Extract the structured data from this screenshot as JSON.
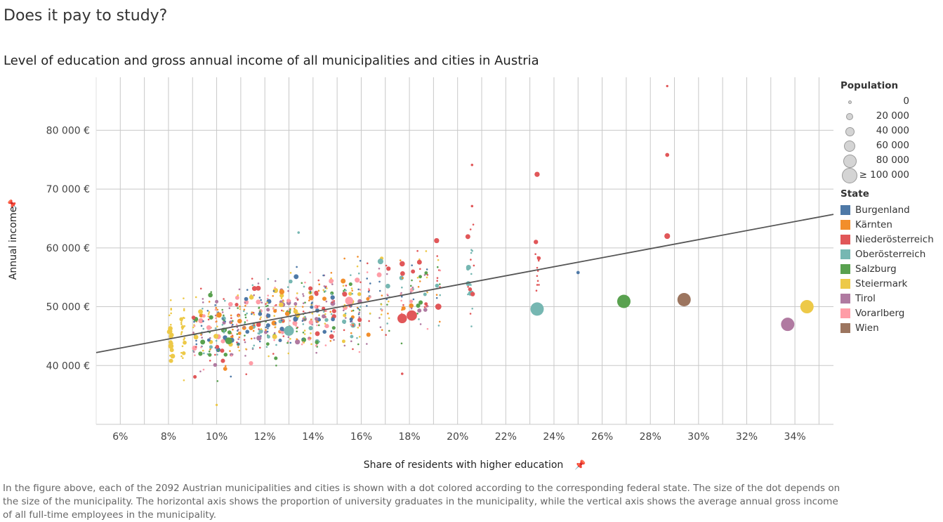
{
  "title": "Does it pay to study?",
  "subtitle": "Level of education and gross annual income of all municipalities and cities in Austria",
  "caption": "In the figure above, each of the 2092 Austrian municipalities and cities is shown with a dot colored according to the corresponding federal state. The size of the dot depends on the size of the municipality. The horizontal axis shows the proportion of university graduates in the municipality, while the vertical axis shows the average annual gross income of all full-time employees in the municipality.",
  "legend": {
    "population_title": "Population",
    "population_sizes": [
      "0",
      "20 000",
      "40 000",
      "60 000",
      "80 000",
      "≥ 100 000"
    ],
    "state_title": "State",
    "states": [
      {
        "name": "Burgenland",
        "color": "#4e79a7"
      },
      {
        "name": "Kärnten",
        "color": "#f28e2b"
      },
      {
        "name": "Niederösterreich",
        "color": "#e15759"
      },
      {
        "name": "Oberösterreich",
        "color": "#76b7b2"
      },
      {
        "name": "Salzburg",
        "color": "#59a14f"
      },
      {
        "name": "Steiermark",
        "color": "#edc948"
      },
      {
        "name": "Tirol",
        "color": "#b07aa1"
      },
      {
        "name": "Vorarlberg",
        "color": "#ff9da7"
      },
      {
        "name": "Wien",
        "color": "#9c755f"
      }
    ]
  },
  "chart_data": {
    "type": "scatter",
    "xlabel": "Share of residents with higher education",
    "ylabel": "Annual income",
    "x_ticks": [
      "6%",
      "8%",
      "10%",
      "12%",
      "14%",
      "16%",
      "18%",
      "20%",
      "22%",
      "24%",
      "26%",
      "28%",
      "30%",
      "32%",
      "34%"
    ],
    "y_ticks": [
      "40 000 €",
      "50 000 €",
      "60 000 €",
      "70 000 €",
      "80 000 €"
    ],
    "xlim": [
      5.0,
      35.6
    ],
    "ylim": [
      30000,
      89000
    ],
    "grid": true,
    "trendline": {
      "x": [
        5.0,
        35.6
      ],
      "y": [
        42200,
        65700
      ]
    },
    "points": [
      {
        "state": "Burgenland",
        "x": 25.0,
        "y": 55800,
        "population": 2000
      },
      {
        "state": "Salzburg",
        "x": 26.9,
        "y": 50900,
        "population": 150000
      },
      {
        "state": "Wien",
        "x": 29.4,
        "y": 51200,
        "population": 1900000
      },
      {
        "state": "Tirol",
        "x": 33.7,
        "y": 47000,
        "population": 130000
      },
      {
        "state": "Steiermark",
        "x": 34.5,
        "y": 50000,
        "population": 290000
      },
      {
        "state": "Oberösterreich",
        "x": 23.3,
        "y": 49600,
        "population": 200000
      },
      {
        "state": "Niederösterreich",
        "x": 23.3,
        "y": 72500,
        "population": 9000
      },
      {
        "state": "Niederösterreich",
        "x": 28.7,
        "y": 87500,
        "population": 300
      },
      {
        "state": "Niederösterreich",
        "x": 28.7,
        "y": 75800,
        "population": 4000
      },
      {
        "state": "Niederösterreich",
        "x": 28.7,
        "y": 62000,
        "population": 12000
      },
      {
        "state": "Niederösterreich",
        "x": 17.7,
        "y": 48000,
        "population": 45000
      },
      {
        "state": "Niederösterreich",
        "x": 18.1,
        "y": 48500,
        "population": 55000
      },
      {
        "state": "Niederösterreich",
        "x": 19.2,
        "y": 50000,
        "population": 15000
      },
      {
        "state": "Niederösterreich",
        "x": 17.7,
        "y": 57300,
        "population": 10000
      },
      {
        "state": "Oberösterreich",
        "x": 13.0,
        "y": 45900,
        "population": 50000
      },
      {
        "state": "Oberösterreich",
        "x": 16.8,
        "y": 57700,
        "population": 12000
      },
      {
        "state": "Vorarlberg",
        "x": 15.5,
        "y": 51000,
        "population": 30000
      },
      {
        "state": "Salzburg",
        "x": 10.5,
        "y": 44200,
        "population": 20000
      },
      {
        "state": "Steiermark",
        "x": 8.1,
        "y": 43300,
        "population": 10000
      },
      {
        "state": "Kärnten",
        "x": 10.1,
        "y": 48600,
        "population": 10000
      },
      {
        "state": "Niederösterreich",
        "x": 20.6,
        "y": 74100,
        "population": 500
      },
      {
        "state": "Niederösterreich",
        "x": 20.6,
        "y": 67100,
        "population": 500
      },
      {
        "state": "Oberösterreich",
        "x": 13.4,
        "y": 62600,
        "population": 500
      },
      {
        "state": "Steiermark",
        "x": 10.0,
        "y": 33300,
        "population": 300
      },
      {
        "state": "Niederösterreich",
        "x": 17.7,
        "y": 38600,
        "population": 500
      }
    ]
  }
}
